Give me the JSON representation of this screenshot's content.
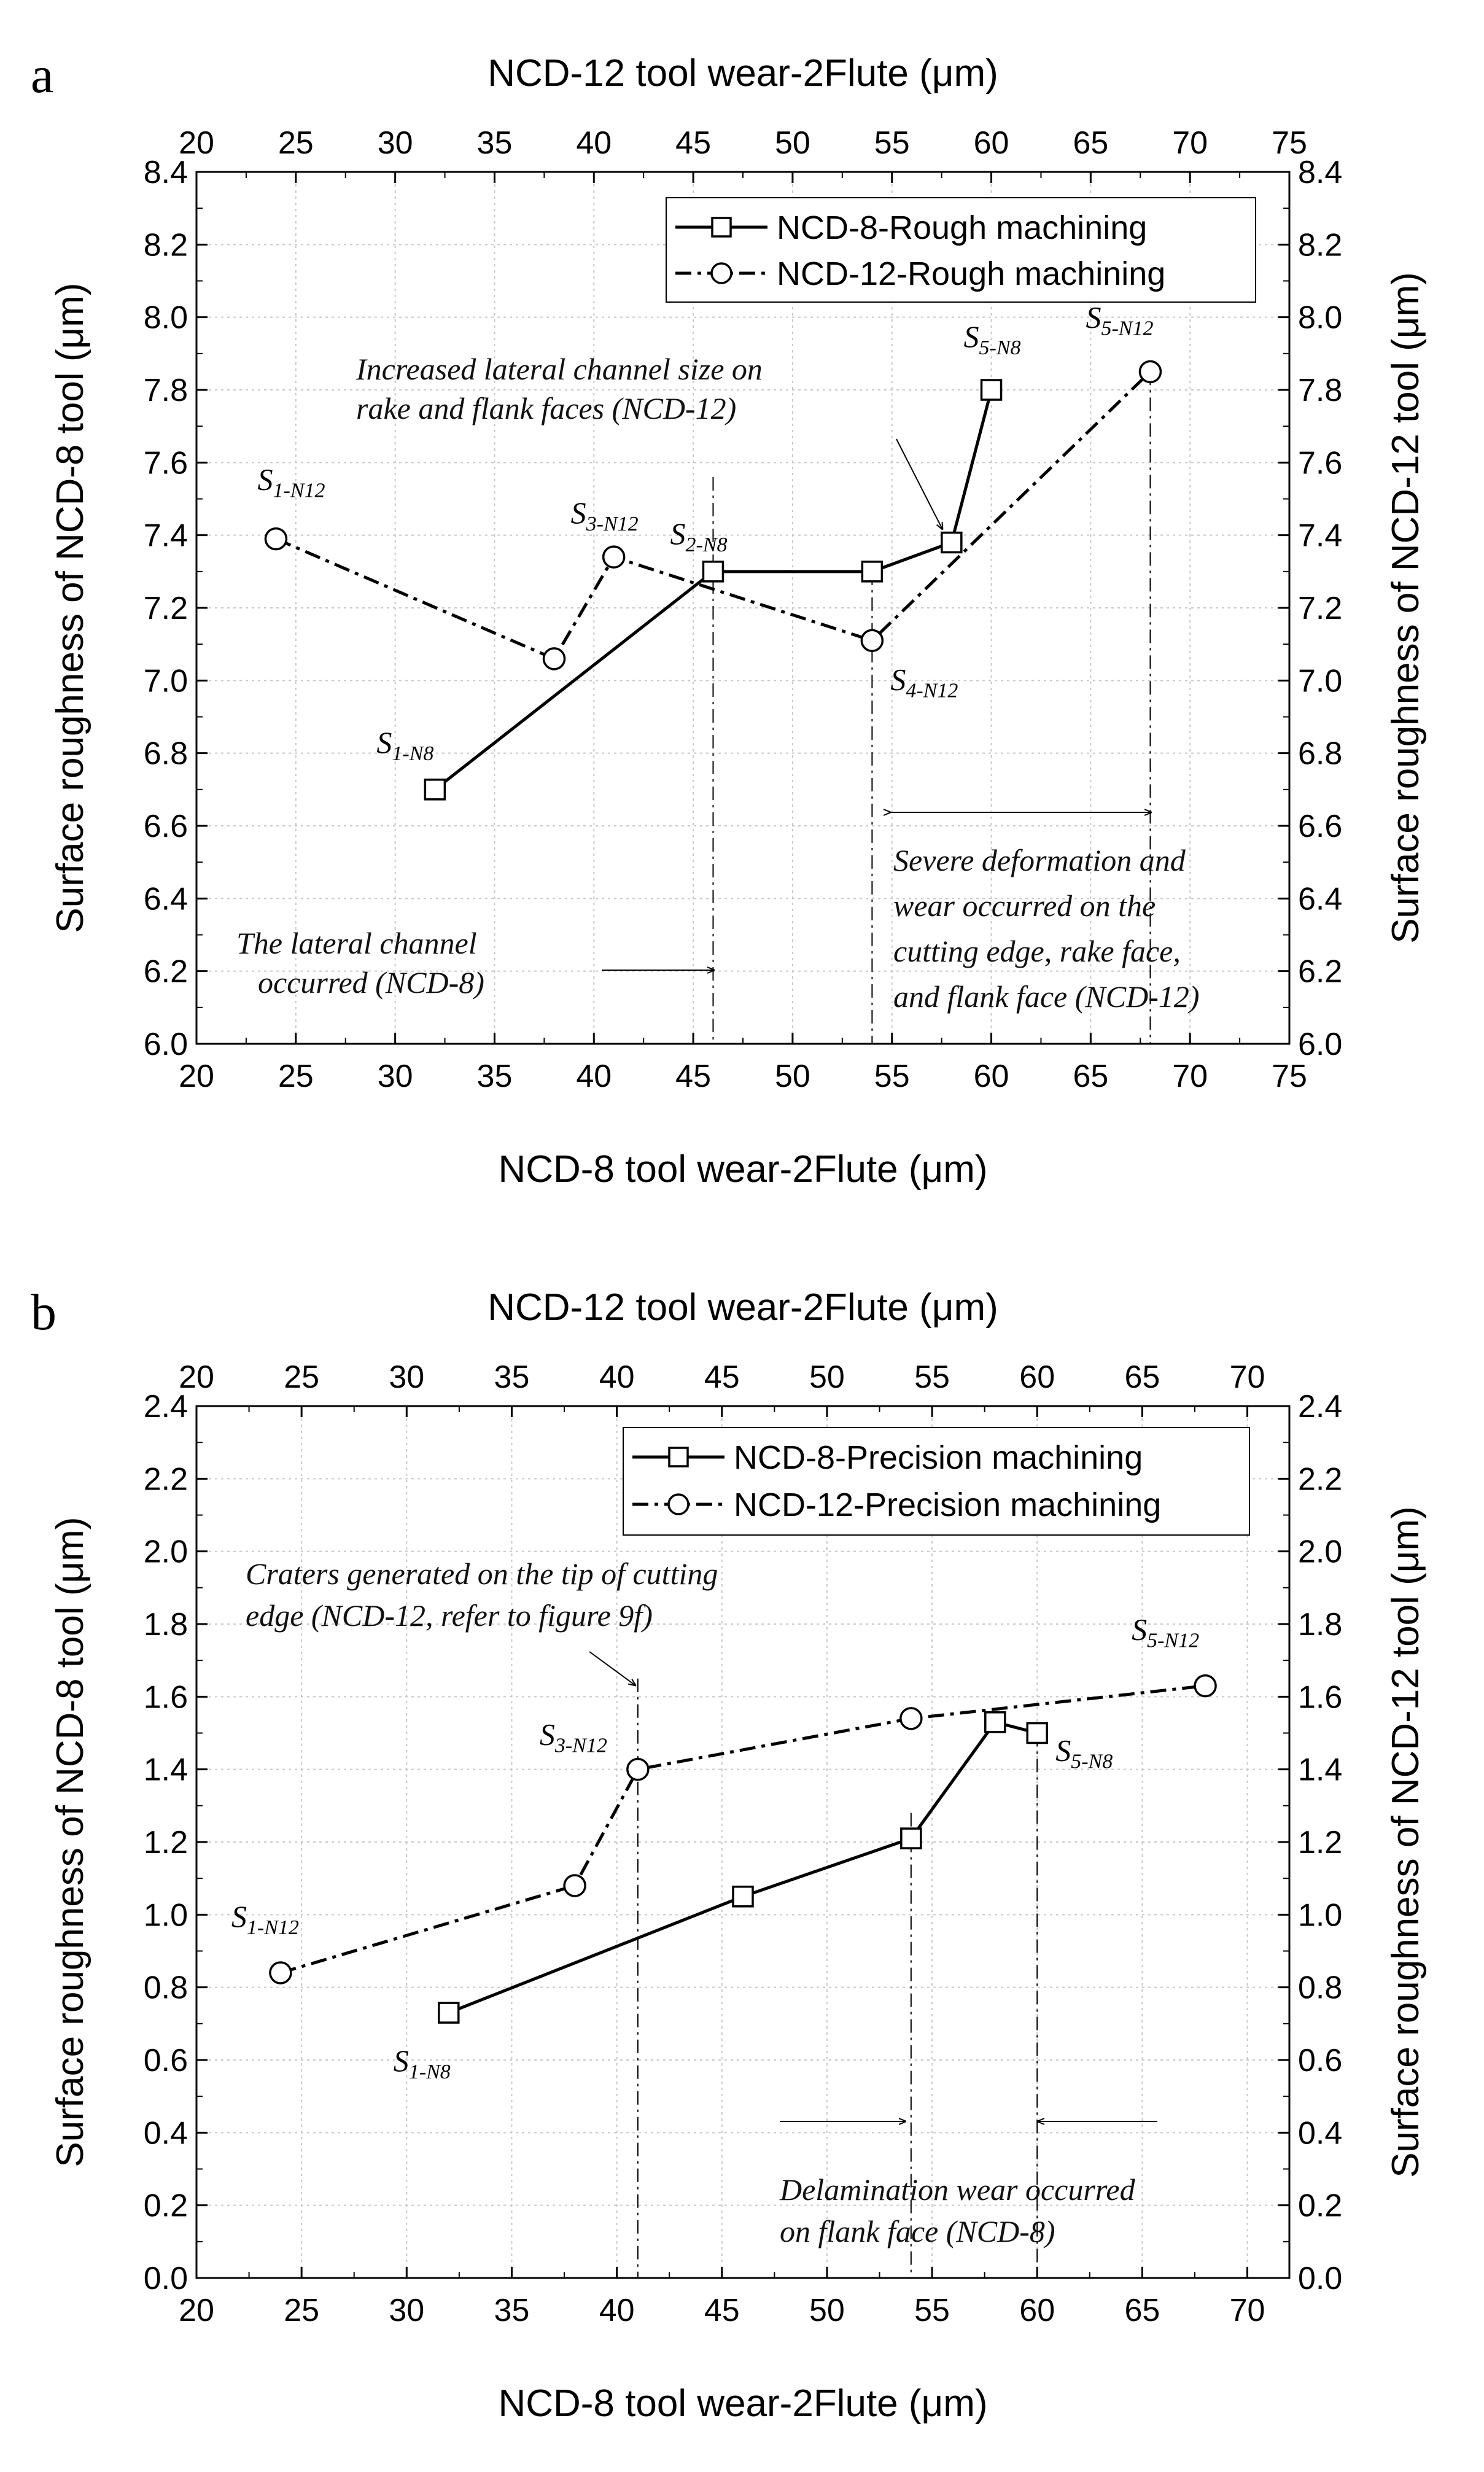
{
  "chart_data": [
    {
      "panel": "a",
      "type": "line",
      "xlabel_bottom": "NCD-8 tool wear-2Flute (μm)",
      "xlabel_top": "NCD-12 tool wear-2Flute (μm)",
      "ylabel_left": "Surface roughness of NCD-8 tool (μm)",
      "ylabel_right": "Surface roughness of NCD-12 tool (μm)",
      "xlim": [
        20,
        75
      ],
      "x_ticks": [
        20,
        25,
        30,
        35,
        40,
        45,
        50,
        55,
        60,
        65,
        70,
        75
      ],
      "ylim": [
        6.0,
        8.4
      ],
      "y_ticks": [
        6.0,
        6.2,
        6.4,
        6.6,
        6.8,
        7.0,
        7.2,
        7.4,
        7.6,
        7.8,
        8.0,
        8.2,
        8.4
      ],
      "y_decimals": 1,
      "grid": true,
      "legend_position": "top-right",
      "series": [
        {
          "name": "NCD-8-Rough machining",
          "marker": "square",
          "line": "solid",
          "x": [
            32,
            46,
            54,
            58,
            60
          ],
          "y": [
            6.7,
            7.3,
            7.3,
            7.38,
            7.8
          ]
        },
        {
          "name": "NCD-12-Rough machining",
          "marker": "circle",
          "line": "dashdot",
          "x": [
            24,
            38,
            41,
            54,
            68
          ],
          "y": [
            7.39,
            7.06,
            7.34,
            7.11,
            7.85
          ]
        }
      ],
      "point_labels": [
        {
          "main": "S",
          "sub": "1-N12",
          "x": 24,
          "y": 7.39
        },
        {
          "main": "S",
          "sub": "3-N12",
          "x": 41,
          "y": 7.34
        },
        {
          "main": "S",
          "sub": "2-N8",
          "x": 46,
          "y": 7.3
        },
        {
          "main": "S",
          "sub": "1-N8",
          "x": 32,
          "y": 6.7
        },
        {
          "main": "S",
          "sub": "5-N8",
          "x": 60,
          "y": 7.8
        },
        {
          "main": "S",
          "sub": "5-N12",
          "x": 68,
          "y": 7.85
        },
        {
          "main": "S",
          "sub": "4-N12",
          "x": 54,
          "y": 7.11
        }
      ],
      "vlines": [
        46,
        54,
        68
      ],
      "annotations": [
        {
          "lines": [
            "Increased lateral channel size on",
            "rake and flank faces (NCD-12)"
          ]
        },
        {
          "lines": [
            "The lateral channel",
            "occurred (NCD-8)"
          ]
        },
        {
          "lines": [
            "Severe deformation and",
            "wear occurred on the",
            "cutting edge, rake face,",
            "and flank face (NCD-12)"
          ]
        }
      ]
    },
    {
      "panel": "b",
      "type": "line",
      "xlabel_bottom": "NCD-8 tool wear-2Flute (μm)",
      "xlabel_top": "NCD-12 tool wear-2Flute (μm)",
      "ylabel_left": "Surface roughness of NCD-8 tool (μm)",
      "ylabel_right": "Surface roughness of NCD-12 tool (μm)",
      "xlim": [
        20,
        72
      ],
      "x_ticks": [
        20,
        25,
        30,
        35,
        40,
        45,
        50,
        55,
        60,
        65,
        70
      ],
      "ylim": [
        0.0,
        2.4
      ],
      "y_ticks": [
        0.0,
        0.2,
        0.4,
        0.6,
        0.8,
        1.0,
        1.2,
        1.4,
        1.6,
        1.8,
        2.0,
        2.2,
        2.4
      ],
      "y_decimals": 1,
      "grid": true,
      "legend_position": "top-right",
      "series": [
        {
          "name": "NCD-8-Precision machining",
          "marker": "square",
          "line": "solid",
          "x": [
            32,
            46,
            54,
            58,
            60
          ],
          "y": [
            0.73,
            1.05,
            1.21,
            1.53,
            1.5
          ]
        },
        {
          "name": "NCD-12-Precision machining",
          "marker": "circle",
          "line": "dashdot",
          "x": [
            24,
            38,
            41,
            54,
            68
          ],
          "y": [
            0.84,
            1.08,
            1.4,
            1.54,
            1.63
          ]
        }
      ],
      "point_labels": [
        {
          "main": "S",
          "sub": "1-N12",
          "x": 24,
          "y": 0.84
        },
        {
          "main": "S",
          "sub": "1-N8",
          "x": 32,
          "y": 0.73
        },
        {
          "main": "S",
          "sub": "3-N12",
          "x": 41,
          "y": 1.4
        },
        {
          "main": "S",
          "sub": "5-N12",
          "x": 68,
          "y": 1.63
        },
        {
          "main": "S",
          "sub": "5-N8",
          "x": 60,
          "y": 1.5
        }
      ],
      "vlines": [
        41,
        54,
        60
      ],
      "annotations": [
        {
          "lines": [
            "Craters generated on the tip of cutting",
            "edge (NCD-12, refer to figure 9f)"
          ]
        },
        {
          "lines": [
            "Delamination wear occurred",
            "on flank face (NCD-8)"
          ]
        }
      ]
    }
  ]
}
